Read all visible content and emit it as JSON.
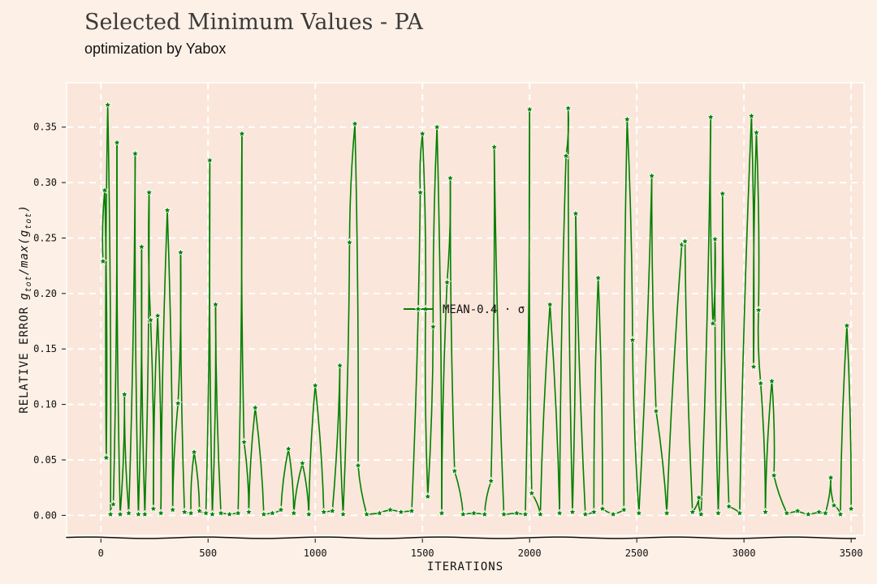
{
  "title": "Selected Minimum Values - PA",
  "subtitle": "optimization by Yabox",
  "colors": {
    "background": "#fdf0e6",
    "plot_bg": "#fae6da",
    "line": "#008000",
    "grid": "#ffffff"
  },
  "chart_data": {
    "type": "line",
    "xlabel": "ITERATIONS",
    "ylabel": "RELATIVE ERROR g_tot/max(g_tot)",
    "ylabel_main": "RELATIVE ERROR",
    "ylabel_math": "g",
    "ylabel_sub": "tot",
    "xlim": [
      -160,
      3560
    ],
    "ylim": [
      -0.018,
      0.39
    ],
    "xticks": [
      0,
      500,
      1000,
      1500,
      2000,
      2500,
      3000,
      3500
    ],
    "yticks": [
      0.0,
      0.05,
      0.1,
      0.15,
      0.2,
      0.25,
      0.3,
      0.35
    ],
    "ytick_labels": [
      "0.00",
      "0.05",
      "0.10",
      "0.15",
      "0.20",
      "0.25",
      "0.30",
      "0.35"
    ],
    "grid": true,
    "legend": {
      "label": "MEAN-0.4 · σ",
      "placement": "center"
    },
    "series": [
      {
        "marker": "star",
        "points": [
          [
            10,
            0.229
          ],
          [
            18,
            0.293
          ],
          [
            25,
            0.052
          ],
          [
            32,
            0.37
          ],
          [
            45,
            0.001
          ],
          [
            58,
            0.01
          ],
          [
            75,
            0.336
          ],
          [
            90,
            0.001
          ],
          [
            110,
            0.109
          ],
          [
            130,
            0.002
          ],
          [
            160,
            0.326
          ],
          [
            175,
            0.001
          ],
          [
            190,
            0.242
          ],
          [
            205,
            0.001
          ],
          [
            225,
            0.291
          ],
          [
            232,
            0.176
          ],
          [
            245,
            0.006
          ],
          [
            265,
            0.18
          ],
          [
            280,
            0.002
          ],
          [
            310,
            0.275
          ],
          [
            335,
            0.005
          ],
          [
            360,
            0.101
          ],
          [
            372,
            0.237
          ],
          [
            390,
            0.003
          ],
          [
            420,
            0.002
          ],
          [
            435,
            0.057
          ],
          [
            460,
            0.004
          ],
          [
            490,
            0.002
          ],
          [
            508,
            0.32
          ],
          [
            520,
            0.001
          ],
          [
            535,
            0.19
          ],
          [
            560,
            0.002
          ],
          [
            600,
            0.001
          ],
          [
            640,
            0.002
          ],
          [
            658,
            0.344
          ],
          [
            668,
            0.066
          ],
          [
            690,
            0.003
          ],
          [
            720,
            0.097
          ],
          [
            760,
            0.001
          ],
          [
            800,
            0.002
          ],
          [
            840,
            0.005
          ],
          [
            875,
            0.06
          ],
          [
            900,
            0.002
          ],
          [
            940,
            0.047
          ],
          [
            970,
            0.001
          ],
          [
            1000,
            0.117
          ],
          [
            1040,
            0.003
          ],
          [
            1080,
            0.004
          ],
          [
            1115,
            0.135
          ],
          [
            1130,
            0.001
          ],
          [
            1160,
            0.246
          ],
          [
            1185,
            0.353
          ],
          [
            1200,
            0.045
          ],
          [
            1240,
            0.001
          ],
          [
            1300,
            0.002
          ],
          [
            1350,
            0.005
          ],
          [
            1400,
            0.003
          ],
          [
            1450,
            0.004
          ],
          [
            1490,
            0.291
          ],
          [
            1500,
            0.344
          ],
          [
            1515,
            0.186
          ],
          [
            1525,
            0.017
          ],
          [
            1550,
            0.17
          ],
          [
            1568,
            0.35
          ],
          [
            1590,
            0.002
          ],
          [
            1615,
            0.21
          ],
          [
            1630,
            0.304
          ],
          [
            1650,
            0.04
          ],
          [
            1690,
            0.001
          ],
          [
            1740,
            0.002
          ],
          [
            1790,
            0.001
          ],
          [
            1820,
            0.031
          ],
          [
            1835,
            0.332
          ],
          [
            1880,
            0.001
          ],
          [
            1940,
            0.002
          ],
          [
            1980,
            0.001
          ],
          [
            2000,
            0.366
          ],
          [
            2010,
            0.02
          ],
          [
            2050,
            0.001
          ],
          [
            2095,
            0.19
          ],
          [
            2140,
            0.002
          ],
          [
            2170,
            0.324
          ],
          [
            2180,
            0.367
          ],
          [
            2200,
            0.003
          ],
          [
            2215,
            0.272
          ],
          [
            2260,
            0.001
          ],
          [
            2300,
            0.003
          ],
          [
            2320,
            0.214
          ],
          [
            2340,
            0.006
          ],
          [
            2390,
            0.001
          ],
          [
            2440,
            0.005
          ],
          [
            2455,
            0.357
          ],
          [
            2480,
            0.158
          ],
          [
            2510,
            0.002
          ],
          [
            2570,
            0.306
          ],
          [
            2590,
            0.094
          ],
          [
            2640,
            0.002
          ],
          [
            2710,
            0.244
          ],
          [
            2725,
            0.247
          ],
          [
            2760,
            0.003
          ],
          [
            2790,
            0.016
          ],
          [
            2800,
            0.001
          ],
          [
            2845,
            0.359
          ],
          [
            2855,
            0.173
          ],
          [
            2865,
            0.249
          ],
          [
            2880,
            0.002
          ],
          [
            2900,
            0.29
          ],
          [
            2930,
            0.008
          ],
          [
            2980,
            0.002
          ],
          [
            3035,
            0.36
          ],
          [
            3045,
            0.134
          ],
          [
            3058,
            0.345
          ],
          [
            3068,
            0.185
          ],
          [
            3078,
            0.119
          ],
          [
            3100,
            0.003
          ],
          [
            3130,
            0.121
          ],
          [
            3140,
            0.036
          ],
          [
            3200,
            0.002
          ],
          [
            3250,
            0.004
          ],
          [
            3300,
            0.001
          ],
          [
            3350,
            0.003
          ],
          [
            3380,
            0.002
          ],
          [
            3405,
            0.034
          ],
          [
            3420,
            0.009
          ],
          [
            3450,
            0.001
          ],
          [
            3480,
            0.171
          ],
          [
            3500,
            0.006
          ]
        ]
      }
    ]
  }
}
